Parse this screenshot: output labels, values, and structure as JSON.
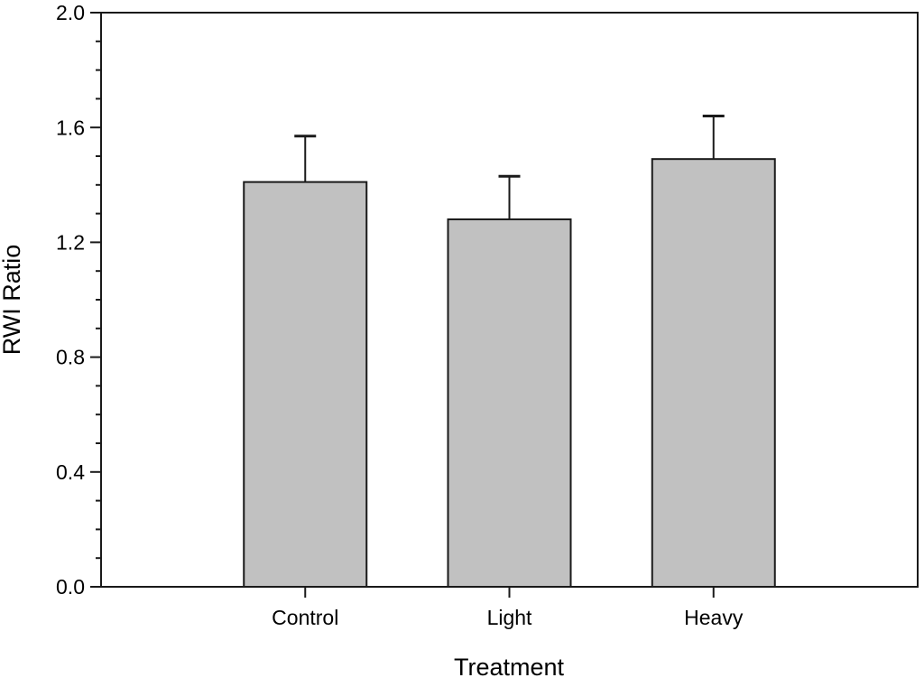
{
  "chart_data": {
    "type": "bar",
    "title": "",
    "xlabel": "Treatment",
    "ylabel": "RWI Ratio",
    "categories": [
      "Control",
      "Light",
      "Heavy"
    ],
    "values": [
      1.41,
      1.28,
      1.49
    ],
    "errors": [
      0.16,
      0.15,
      0.15
    ],
    "error_direction": "upper-only",
    "ylim": [
      0.0,
      2.0
    ],
    "y_major_ticks": [
      0.0,
      0.4,
      0.8,
      1.2,
      1.6,
      2.0
    ],
    "y_tick_labels": [
      "0.0",
      "0.4",
      "0.8",
      "1.2",
      "1.6",
      "2.0"
    ],
    "y_minor_step": 0.1,
    "grid": false,
    "legend": false,
    "colors": {
      "bar_fill": "#c1c1c1",
      "line": "#1a1a1a",
      "text": "#000000",
      "background": "#ffffff"
    }
  }
}
